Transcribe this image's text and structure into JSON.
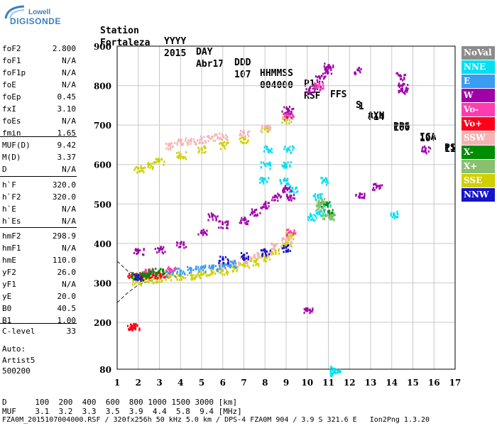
{
  "logo": {
    "top": "Lowell",
    "bottom": "DIGISONDE"
  },
  "header": {
    "row1": [
      "Station",
      "YYYY",
      "DAY",
      "DDD",
      "HHMMSS",
      "P1",
      "FFS",
      "S",
      "AXN",
      "PPS",
      "IGA",
      "PS"
    ],
    "row2": [
      "Fortaleza",
      "2015",
      "Abr17",
      "107",
      "004000",
      "RSF",
      "1",
      "714",
      "100",
      "10+",
      "11"
    ]
  },
  "params_group1": [
    {
      "name": "foF2",
      "value": "2.800"
    },
    {
      "name": "foF1",
      "value": "N/A"
    },
    {
      "name": "foF1p",
      "value": "N/A"
    },
    {
      "name": "foE",
      "value": "N/A"
    },
    {
      "name": "foEp",
      "value": "0.45"
    },
    {
      "name": "fxI",
      "value": "3.10"
    },
    {
      "name": "foEs",
      "value": "N/A"
    },
    {
      "name": "fmin",
      "value": "1.65"
    }
  ],
  "params_group2": [
    {
      "name": "MUF(D)",
      "value": "9.42"
    },
    {
      "name": "M(D)",
      "value": "3.37"
    },
    {
      "name": "D",
      "value": "N/A"
    }
  ],
  "params_group3": [
    {
      "name": "h`F",
      "value": "320.0"
    },
    {
      "name": "h`F2",
      "value": "320.0"
    },
    {
      "name": "h`E",
      "value": "N/A"
    },
    {
      "name": "h`Es",
      "value": "N/A"
    }
  ],
  "params_group4": [
    {
      "name": "hmF2",
      "value": "298.9"
    },
    {
      "name": "hmF1",
      "value": "N/A"
    },
    {
      "name": "hmE",
      "value": "110.0"
    },
    {
      "name": "yF2",
      "value": "26.0"
    },
    {
      "name": "yF1",
      "value": "N/A"
    },
    {
      "name": "yE",
      "value": "20.0"
    },
    {
      "name": "B0",
      "value": "40.5"
    },
    {
      "name": "B1",
      "value": "1.00"
    }
  ],
  "clevel": {
    "name": "C-level",
    "value": "33"
  },
  "auto": {
    "label": "Auto:",
    "scaler": "Artist5",
    "code": "500200"
  },
  "bottom": {
    "d_row": "D      100  200  400  600  800 1000 1500 3000 [km]",
    "muf_row": "MUF    3.1  3.2  3.3  3.5  3.9  4.4  5.8  9.4 [MHz]",
    "file_row": "FZA0M_2015107004000.RSF / 320fx256h 50 kHz 5.0 km / DPS-4 FZA0M 904 / 3.9 S 321.6 E   Ion2Png 1.3.20"
  },
  "legend": [
    {
      "label": "NoVal",
      "color": "#8c8c8c"
    },
    {
      "label": "NNE",
      "color": "#00e0f0"
    },
    {
      "label": "E",
      "color": "#3a9cf2"
    },
    {
      "label": "W",
      "color": "#a000a8"
    },
    {
      "label": "Vo-",
      "color": "#ff3cae"
    },
    {
      "label": "Vo+",
      "color": "#ff0018"
    },
    {
      "label": "SSW",
      "color": "#f4b4b4"
    },
    {
      "label": "X-",
      "color": "#008c00"
    },
    {
      "label": "X+",
      "color": "#88c070"
    },
    {
      "label": "SSE",
      "color": "#d0d000"
    },
    {
      "label": "NNW",
      "color": "#1414c8"
    }
  ],
  "chart_data": {
    "type": "scatter",
    "xlabel": "",
    "ylabel": "",
    "xlim": [
      1,
      17
    ],
    "ylim": [
      80,
      900
    ],
    "x_ticks": [
      "1",
      "2",
      "3",
      "4",
      "5",
      "6",
      "7",
      "8",
      "9",
      "10",
      "11",
      "12",
      "13",
      "14",
      "15",
      "16",
      "17"
    ],
    "y_ticks": [
      {
        "value": 80,
        "label": "80"
      },
      {
        "value": 200,
        "label": "200"
      },
      {
        "value": 300,
        "label": "300"
      },
      {
        "value": 400,
        "label": "400"
      },
      {
        "value": 500,
        "label": "500"
      },
      {
        "value": 600,
        "label": "600"
      },
      {
        "value": 700,
        "label": "700"
      },
      {
        "value": 800,
        "label": "800"
      },
      {
        "value": 900,
        "label": "900"
      }
    ],
    "grid": true,
    "series": [
      {
        "name": "SSE",
        "color": "#d0d000",
        "points": [
          [
            1.9,
            305
          ],
          [
            2.2,
            308
          ],
          [
            2.5,
            310
          ],
          [
            3.0,
            312
          ],
          [
            3.5,
            315
          ],
          [
            4.0,
            318
          ],
          [
            4.5,
            320
          ],
          [
            5.0,
            322
          ],
          [
            5.5,
            326
          ],
          [
            6.0,
            332
          ],
          [
            6.5,
            340
          ],
          [
            7.0,
            348
          ],
          [
            7.5,
            355
          ],
          [
            8.0,
            365
          ],
          [
            8.5,
            380
          ],
          [
            9.0,
            400
          ],
          [
            9.2,
            420
          ],
          [
            2.0,
            590
          ],
          [
            2.5,
            600
          ],
          [
            3.0,
            610
          ],
          [
            4.0,
            625
          ],
          [
            5.0,
            640
          ],
          [
            6.0,
            650
          ],
          [
            7.0,
            665
          ],
          [
            8.0,
            690
          ],
          [
            9.0,
            715
          ]
        ]
      },
      {
        "name": "SSW",
        "color": "#f4b4b4",
        "points": [
          [
            3.5,
            650
          ],
          [
            4.0,
            660
          ],
          [
            4.5,
            660
          ],
          [
            5.0,
            665
          ],
          [
            5.5,
            670
          ],
          [
            6.0,
            672
          ],
          [
            7.0,
            680
          ],
          [
            8.0,
            695
          ],
          [
            6.0,
            345
          ],
          [
            6.5,
            350
          ],
          [
            7.0,
            360
          ],
          [
            7.5,
            370
          ],
          [
            8.0,
            380
          ],
          [
            8.5,
            395
          ],
          [
            9.0,
            410
          ]
        ]
      },
      {
        "name": "E",
        "color": "#3a9cf2",
        "points": [
          [
            3.5,
            325
          ],
          [
            4.0,
            330
          ],
          [
            4.5,
            335
          ],
          [
            5.0,
            340
          ],
          [
            5.5,
            340
          ],
          [
            6.0,
            345
          ],
          [
            6.5,
            350
          ]
        ]
      },
      {
        "name": "NNE",
        "color": "#00e0f0",
        "points": [
          [
            7.9,
            560
          ],
          [
            8.0,
            600
          ],
          [
            8.1,
            640
          ],
          [
            8.9,
            560
          ],
          [
            9.0,
            600
          ],
          [
            9.1,
            640
          ],
          [
            9.3,
            540
          ],
          [
            10.2,
            470
          ],
          [
            10.5,
            520
          ],
          [
            10.6,
            480
          ],
          [
            10.8,
            560
          ],
          [
            10.9,
            500
          ],
          [
            14.1,
            475
          ],
          [
            11.3,
            80
          ],
          [
            11.3,
            72
          ]
        ]
      },
      {
        "name": "W",
        "color": "#a000a8",
        "points": [
          [
            2.0,
            380
          ],
          [
            3.0,
            385
          ],
          [
            4.0,
            400
          ],
          [
            5.0,
            430
          ],
          [
            5.5,
            470
          ],
          [
            6.0,
            450
          ],
          [
            7.0,
            460
          ],
          [
            7.5,
            480
          ],
          [
            8.0,
            500
          ],
          [
            8.5,
            520
          ],
          [
            9.0,
            540
          ],
          [
            9.2,
            520
          ],
          [
            9.0,
            730
          ],
          [
            9.1,
            740
          ],
          [
            10.1,
            790
          ],
          [
            10.4,
            800
          ],
          [
            10.6,
            820
          ],
          [
            10.9,
            840
          ],
          [
            11.0,
            850
          ],
          [
            12.4,
            840
          ],
          [
            14.4,
            825
          ],
          [
            14.5,
            800
          ],
          [
            14.5,
            790
          ],
          [
            13.3,
            545
          ],
          [
            12.5,
            525
          ],
          [
            15.6,
            640
          ],
          [
            10.0,
            230
          ]
        ]
      },
      {
        "name": "Vo+",
        "color": "#ff0018",
        "points": [
          [
            1.7,
            320
          ],
          [
            2.0,
            320
          ],
          [
            2.3,
            322
          ],
          [
            2.7,
            322
          ],
          [
            3.0,
            325
          ],
          [
            1.7,
            190
          ],
          [
            1.8,
            190
          ]
        ]
      },
      {
        "name": "Vo-",
        "color": "#ff3cae",
        "points": [
          [
            2.5,
            330
          ],
          [
            3.5,
            335
          ],
          [
            9.2,
            430
          ],
          [
            9.1,
            725
          ],
          [
            10.5,
            800
          ]
        ]
      },
      {
        "name": "X-",
        "color": "#008c00",
        "points": [
          [
            1.9,
            318
          ],
          [
            2.2,
            322
          ],
          [
            2.6,
            328
          ],
          [
            3.0,
            330
          ],
          [
            11.0,
            480
          ],
          [
            10.8,
            500
          ]
        ]
      },
      {
        "name": "X+",
        "color": "#88c070",
        "points": [
          [
            10.6,
            495
          ],
          [
            10.7,
            510
          ],
          [
            10.9,
            470
          ],
          [
            11.1,
            470
          ]
        ]
      },
      {
        "name": "NNW",
        "color": "#1414c8",
        "points": [
          [
            6.0,
            360
          ],
          [
            7.0,
            370
          ],
          [
            8.0,
            380
          ],
          [
            9.0,
            390
          ],
          [
            2.0,
            315
          ]
        ]
      }
    ],
    "dashed_curve": [
      [
        1.0,
        250
      ],
      [
        1.5,
        275
      ],
      [
        2.0,
        295
      ],
      [
        2.5,
        305
      ],
      [
        3.0,
        312
      ]
    ],
    "dashed_curve2": [
      [
        1.0,
        355
      ],
      [
        1.5,
        330
      ],
      [
        2.0,
        320
      ],
      [
        2.5,
        318
      ],
      [
        3.0,
        318
      ]
    ]
  }
}
